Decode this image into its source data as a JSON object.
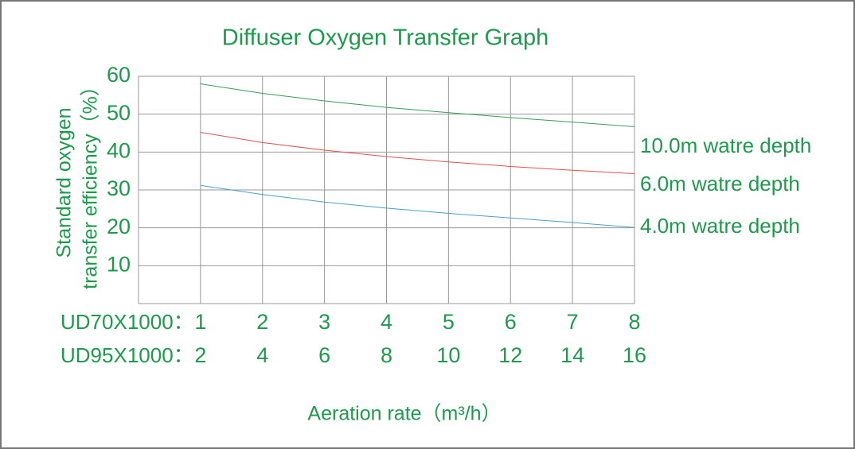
{
  "chart_data": {
    "type": "line",
    "title": "Diffuser Oxygen Transfer Graph",
    "ylabel": [
      "Standard oxygen",
      "transfer efficiency（%）"
    ],
    "xlabel": "Aeration rate（m³/h）",
    "xaxis_name": "UD70X1000：",
    "x2axis_name": "UD95X1000：",
    "x": [
      1,
      2,
      3,
      4,
      5,
      6,
      7,
      8
    ],
    "xlim": [
      0,
      8
    ],
    "xticks": [
      1,
      2,
      3,
      4,
      5,
      6,
      7,
      8
    ],
    "x2lim": [
      0,
      16
    ],
    "x2ticks": [
      2,
      4,
      6,
      8,
      10,
      12,
      14,
      16
    ],
    "ylim": [
      0,
      60
    ],
    "yticks": [
      10,
      20,
      30,
      40,
      50,
      60
    ],
    "grid": true,
    "series": [
      {
        "name": "10.0m watre depth",
        "color": "#3a9a5a",
        "values": [
          58,
          55.5,
          53.5,
          51.8,
          50.4,
          49.1,
          47.9,
          46.7
        ]
      },
      {
        "name": "6.0m watre depth",
        "color": "#d9534f",
        "values": [
          45.2,
          42.5,
          40.5,
          38.8,
          37.4,
          36.2,
          35.2,
          34.3
        ]
      },
      {
        "name": "4.0m watre depth",
        "color": "#4a9fc8",
        "values": [
          31.2,
          28.8,
          26.8,
          25.2,
          23.8,
          22.6,
          21.4,
          20.1
        ]
      }
    ]
  }
}
